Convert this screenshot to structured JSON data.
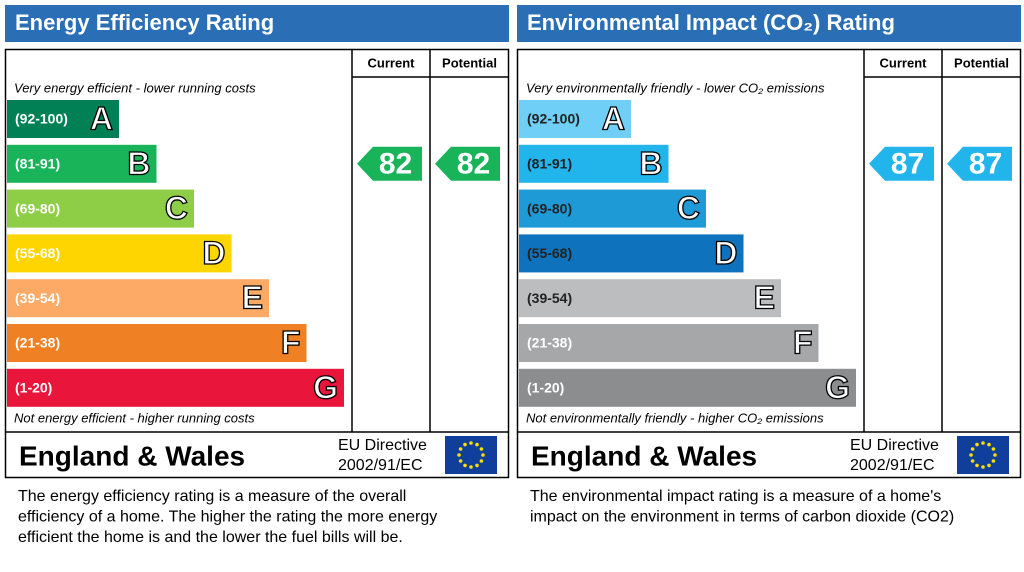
{
  "panels": [
    {
      "title": "Energy Efficiency Rating",
      "title_color": "#2a6fb6",
      "columns": [
        "Current",
        "Potential"
      ],
      "top_note": "Very energy efficient - lower running costs",
      "bands": [
        {
          "range": "(92-100)",
          "letter": "A",
          "color": "#008054",
          "text_color": "#ffffff"
        },
        {
          "range": "(81-91)",
          "letter": "B",
          "color": "#19b459",
          "text_color": "#ffffff"
        },
        {
          "range": "(69-80)",
          "letter": "C",
          "color": "#8dce46",
          "text_color": "#ffffff"
        },
        {
          "range": "(55-68)",
          "letter": "D",
          "color": "#ffd500",
          "text_color": "#ffffff"
        },
        {
          "range": "(39-54)",
          "letter": "E",
          "color": "#fcaa65",
          "text_color": "#ffffff"
        },
        {
          "range": "(21-38)",
          "letter": "F",
          "color": "#ef8023",
          "text_color": "#ffffff"
        },
        {
          "range": "(1-20)",
          "letter": "G",
          "color": "#e9153b",
          "text_color": "#ffffff"
        }
      ],
      "bottom_note": "Not energy efficient - higher running costs",
      "current": 82,
      "potential": 82,
      "country": "England & Wales",
      "directive": [
        "EU Directive",
        "2002/91/EC"
      ],
      "description": [
        "The energy efficiency rating is a measure of the overall",
        "efficiency of a home.  The higher the rating the more energy",
        "efficient the home is and the lower the fuel bills will be."
      ]
    },
    {
      "title": "Environmental Impact (CO₂) Rating",
      "title_color": "#2a6fb6",
      "columns": [
        "Current",
        "Potential"
      ],
      "top_note": "Very environmentally friendly - lower CO₂ emissions",
      "bands": [
        {
          "range": "(92-100)",
          "letter": "A",
          "color": "#6fcff6",
          "text_color": "#222222"
        },
        {
          "range": "(81-91)",
          "letter": "B",
          "color": "#22b5eb",
          "text_color": "#222222"
        },
        {
          "range": "(69-80)",
          "letter": "C",
          "color": "#1e9ad6",
          "text_color": "#222222"
        },
        {
          "range": "(55-68)",
          "letter": "D",
          "color": "#0e72bc",
          "text_color": "#222222"
        },
        {
          "range": "(39-54)",
          "letter": "E",
          "color": "#bbbdbf",
          "text_color": "#222222"
        },
        {
          "range": "(21-38)",
          "letter": "F",
          "color": "#a5a7a9",
          "text_color": "#ffffff"
        },
        {
          "range": "(1-20)",
          "letter": "G",
          "color": "#8b8d8f",
          "text_color": "#ffffff"
        }
      ],
      "bottom_note": "Not environmentally friendly - higher CO₂ emissions",
      "current": 87,
      "potential": 87,
      "country": "England & Wales",
      "directive": [
        "EU Directive",
        "2002/91/EC"
      ],
      "description": [
        "The environmental impact rating is a measure of a home's",
        "impact on the environment in terms of carbon dioxide (CO2)"
      ]
    }
  ]
}
